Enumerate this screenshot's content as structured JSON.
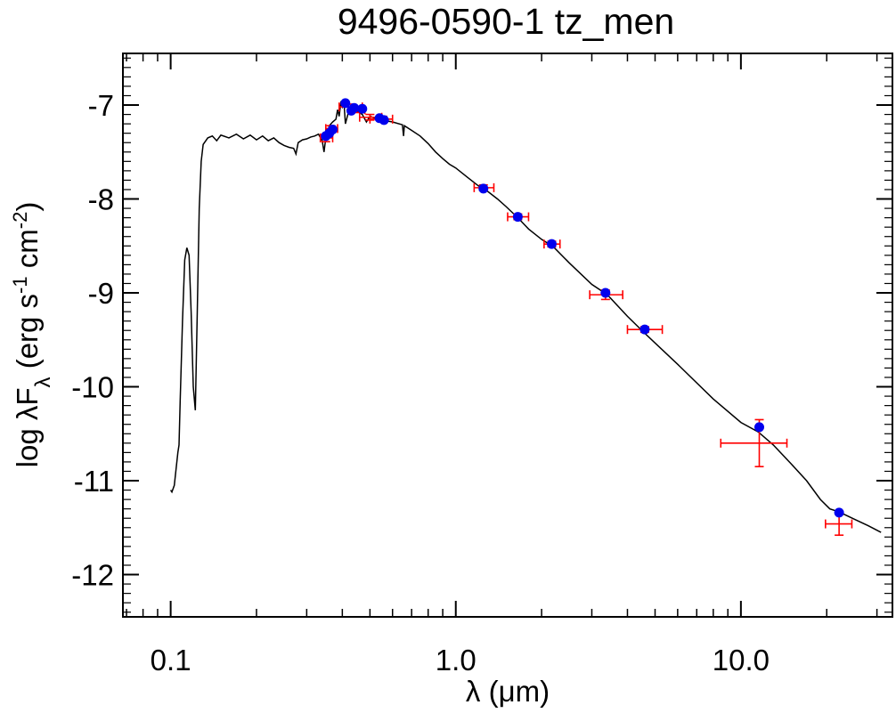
{
  "chart_data": {
    "type": "scatter",
    "title": "9496-0590-1   tz_men",
    "xlabel": {
      "prefix": "λ (",
      "unit": "μm",
      "suffix": ")"
    },
    "ylabel": {
      "parts": [
        {
          "t": "log λF",
          "s": "n"
        },
        {
          "t": "λ",
          "s": "sub"
        },
        {
          "t": " (erg s",
          "s": "n"
        },
        {
          "t": "-1",
          "s": "sup"
        },
        {
          "t": " cm",
          "s": "n"
        },
        {
          "t": "-2",
          "s": "sup"
        },
        {
          "t": ")",
          "s": "n"
        }
      ]
    },
    "x_scale": "log",
    "xlim": [
      0.068,
      34
    ],
    "ylim": [
      -12.45,
      -6.45
    ],
    "x_ticks": [
      {
        "value": 0.1,
        "label": "0.1"
      },
      {
        "value": 1.0,
        "label": "1.0"
      },
      {
        "value": 10.0,
        "label": "10.0"
      }
    ],
    "y_ticks": [
      {
        "value": -7,
        "label": "-7"
      },
      {
        "value": -8,
        "label": "-8"
      },
      {
        "value": -9,
        "label": "-9"
      },
      {
        "value": -10,
        "label": "-10"
      },
      {
        "value": -11,
        "label": "-11"
      },
      {
        "value": -12,
        "label": "-12"
      }
    ],
    "grid": false,
    "colors": {
      "model": "#000000",
      "model_points": "#0000ee",
      "observed": "#ff0000"
    },
    "model_spectrum": [
      [
        0.1,
        -11.1
      ],
      [
        0.101,
        -11.12
      ],
      [
        0.103,
        -11.05
      ],
      [
        0.106,
        -10.7
      ],
      [
        0.107,
        -10.62
      ],
      [
        0.108,
        -10.15
      ],
      [
        0.11,
        -9.3
      ],
      [
        0.112,
        -8.65
      ],
      [
        0.114,
        -8.52
      ],
      [
        0.116,
        -8.6
      ],
      [
        0.118,
        -9.2
      ],
      [
        0.12,
        -10.0
      ],
      [
        0.122,
        -10.25
      ],
      [
        0.124,
        -9.2
      ],
      [
        0.126,
        -8.1
      ],
      [
        0.128,
        -7.6
      ],
      [
        0.13,
        -7.42
      ],
      [
        0.135,
        -7.35
      ],
      [
        0.14,
        -7.33
      ],
      [
        0.145,
        -7.38
      ],
      [
        0.15,
        -7.32
      ],
      [
        0.16,
        -7.35
      ],
      [
        0.17,
        -7.31
      ],
      [
        0.18,
        -7.36
      ],
      [
        0.19,
        -7.32
      ],
      [
        0.2,
        -7.37
      ],
      [
        0.21,
        -7.33
      ],
      [
        0.22,
        -7.38
      ],
      [
        0.23,
        -7.35
      ],
      [
        0.24,
        -7.4
      ],
      [
        0.25,
        -7.43
      ],
      [
        0.26,
        -7.45
      ],
      [
        0.27,
        -7.46
      ],
      [
        0.275,
        -7.52
      ],
      [
        0.28,
        -7.4
      ],
      [
        0.29,
        -7.37
      ],
      [
        0.3,
        -7.36
      ],
      [
        0.31,
        -7.34
      ],
      [
        0.32,
        -7.33
      ],
      [
        0.33,
        -7.31
      ],
      [
        0.34,
        -7.38
      ],
      [
        0.345,
        -7.5
      ],
      [
        0.35,
        -7.35
      ],
      [
        0.355,
        -7.3
      ],
      [
        0.36,
        -7.22
      ],
      [
        0.37,
        -7.18
      ],
      [
        0.38,
        -7.15
      ],
      [
        0.385,
        -7.05
      ],
      [
        0.39,
        -7.12
      ],
      [
        0.395,
        -6.98
      ],
      [
        0.4,
        -7.02
      ],
      [
        0.405,
        -6.96
      ],
      [
        0.41,
        -7.2
      ],
      [
        0.42,
        -7.08
      ],
      [
        0.43,
        -7.0
      ],
      [
        0.44,
        -7.05
      ],
      [
        0.45,
        -7.06
      ],
      [
        0.47,
        -7.1
      ],
      [
        0.486,
        -7.18
      ],
      [
        0.5,
        -7.12
      ],
      [
        0.52,
        -7.14
      ],
      [
        0.55,
        -7.16
      ],
      [
        0.6,
        -7.18
      ],
      [
        0.65,
        -7.21
      ],
      [
        0.656,
        -7.33
      ],
      [
        0.66,
        -7.22
      ],
      [
        0.7,
        -7.27
      ],
      [
        0.75,
        -7.33
      ],
      [
        0.8,
        -7.41
      ],
      [
        0.85,
        -7.5
      ],
      [
        0.9,
        -7.57
      ],
      [
        0.95,
        -7.63
      ],
      [
        1.0,
        -7.67
      ],
      [
        1.1,
        -7.77
      ],
      [
        1.2,
        -7.86
      ],
      [
        1.27,
        -7.9
      ],
      [
        1.4,
        -8.0
      ],
      [
        1.5,
        -8.08
      ],
      [
        1.65,
        -8.2
      ],
      [
        1.8,
        -8.32
      ],
      [
        2.0,
        -8.43
      ],
      [
        2.2,
        -8.51
      ],
      [
        2.5,
        -8.68
      ],
      [
        3.0,
        -8.91
      ],
      [
        3.4,
        -9.02
      ],
      [
        4.0,
        -9.25
      ],
      [
        4.6,
        -9.43
      ],
      [
        6.0,
        -9.76
      ],
      [
        8.0,
        -10.13
      ],
      [
        10.0,
        -10.38
      ],
      [
        11.5,
        -10.48
      ],
      [
        13.0,
        -10.62
      ],
      [
        15.0,
        -10.82
      ],
      [
        17.0,
        -11.0
      ],
      [
        19.0,
        -11.2
      ],
      [
        20.5,
        -11.3
      ],
      [
        22.0,
        -11.33
      ],
      [
        25.0,
        -11.41
      ],
      [
        28.0,
        -11.48
      ],
      [
        31.0,
        -11.55
      ]
    ],
    "model_points": [
      {
        "x": 0.35,
        "y": -7.33
      },
      {
        "x": 0.36,
        "y": -7.3
      },
      {
        "x": 0.37,
        "y": -7.26
      },
      {
        "x": 0.41,
        "y": -6.98
      },
      {
        "x": 0.43,
        "y": -7.06
      },
      {
        "x": 0.44,
        "y": -7.03
      },
      {
        "x": 0.47,
        "y": -7.04
      },
      {
        "x": 0.54,
        "y": -7.14
      },
      {
        "x": 0.56,
        "y": -7.16
      },
      {
        "x": 1.25,
        "y": -7.89
      },
      {
        "x": 1.65,
        "y": -8.19
      },
      {
        "x": 2.17,
        "y": -8.48
      },
      {
        "x": 3.35,
        "y": -9.0
      },
      {
        "x": 4.6,
        "y": -9.39
      },
      {
        "x": 11.6,
        "y": -10.43
      },
      {
        "x": 22.1,
        "y": -11.34
      }
    ],
    "observed": [
      {
        "x": 0.35,
        "y": -7.35,
        "xlo": 0.335,
        "xhi": 0.37,
        "yerr": 0.04
      },
      {
        "x": 0.365,
        "y": -7.25,
        "xlo": 0.35,
        "xhi": 0.385,
        "yerr": 0.03
      },
      {
        "x": 0.43,
        "y": -7.02,
        "xlo": 0.39,
        "xhi": 0.47,
        "yerr": 0.03
      },
      {
        "x": 0.45,
        "y": -7.05,
        "xlo": 0.43,
        "xhi": 0.48,
        "yerr": 0.03
      },
      {
        "x": 0.5,
        "y": -7.13,
        "xlo": 0.46,
        "xhi": 0.55,
        "yerr": 0.03
      },
      {
        "x": 0.555,
        "y": -7.15,
        "xlo": 0.5,
        "xhi": 0.6,
        "yerr": 0.03
      },
      {
        "x": 1.25,
        "y": -7.88,
        "xlo": 1.16,
        "xhi": 1.36,
        "yerr": 0.03
      },
      {
        "x": 1.65,
        "y": -8.19,
        "xlo": 1.52,
        "xhi": 1.8,
        "yerr": 0.03
      },
      {
        "x": 2.17,
        "y": -8.48,
        "xlo": 2.04,
        "xhi": 2.32,
        "yerr": 0.03
      },
      {
        "x": 3.35,
        "y": -9.02,
        "xlo": 2.95,
        "xhi": 3.85,
        "yerr": 0.05
      },
      {
        "x": 4.6,
        "y": -9.39,
        "xlo": 4.0,
        "xhi": 5.3,
        "yerr": 0.03
      },
      {
        "x": 11.6,
        "y": -10.6,
        "xlo": 8.5,
        "xhi": 14.5,
        "yerr": 0.25
      },
      {
        "x": 22.1,
        "y": -11.46,
        "xlo": 19.8,
        "xhi": 24.5,
        "yerr": 0.12
      }
    ]
  }
}
